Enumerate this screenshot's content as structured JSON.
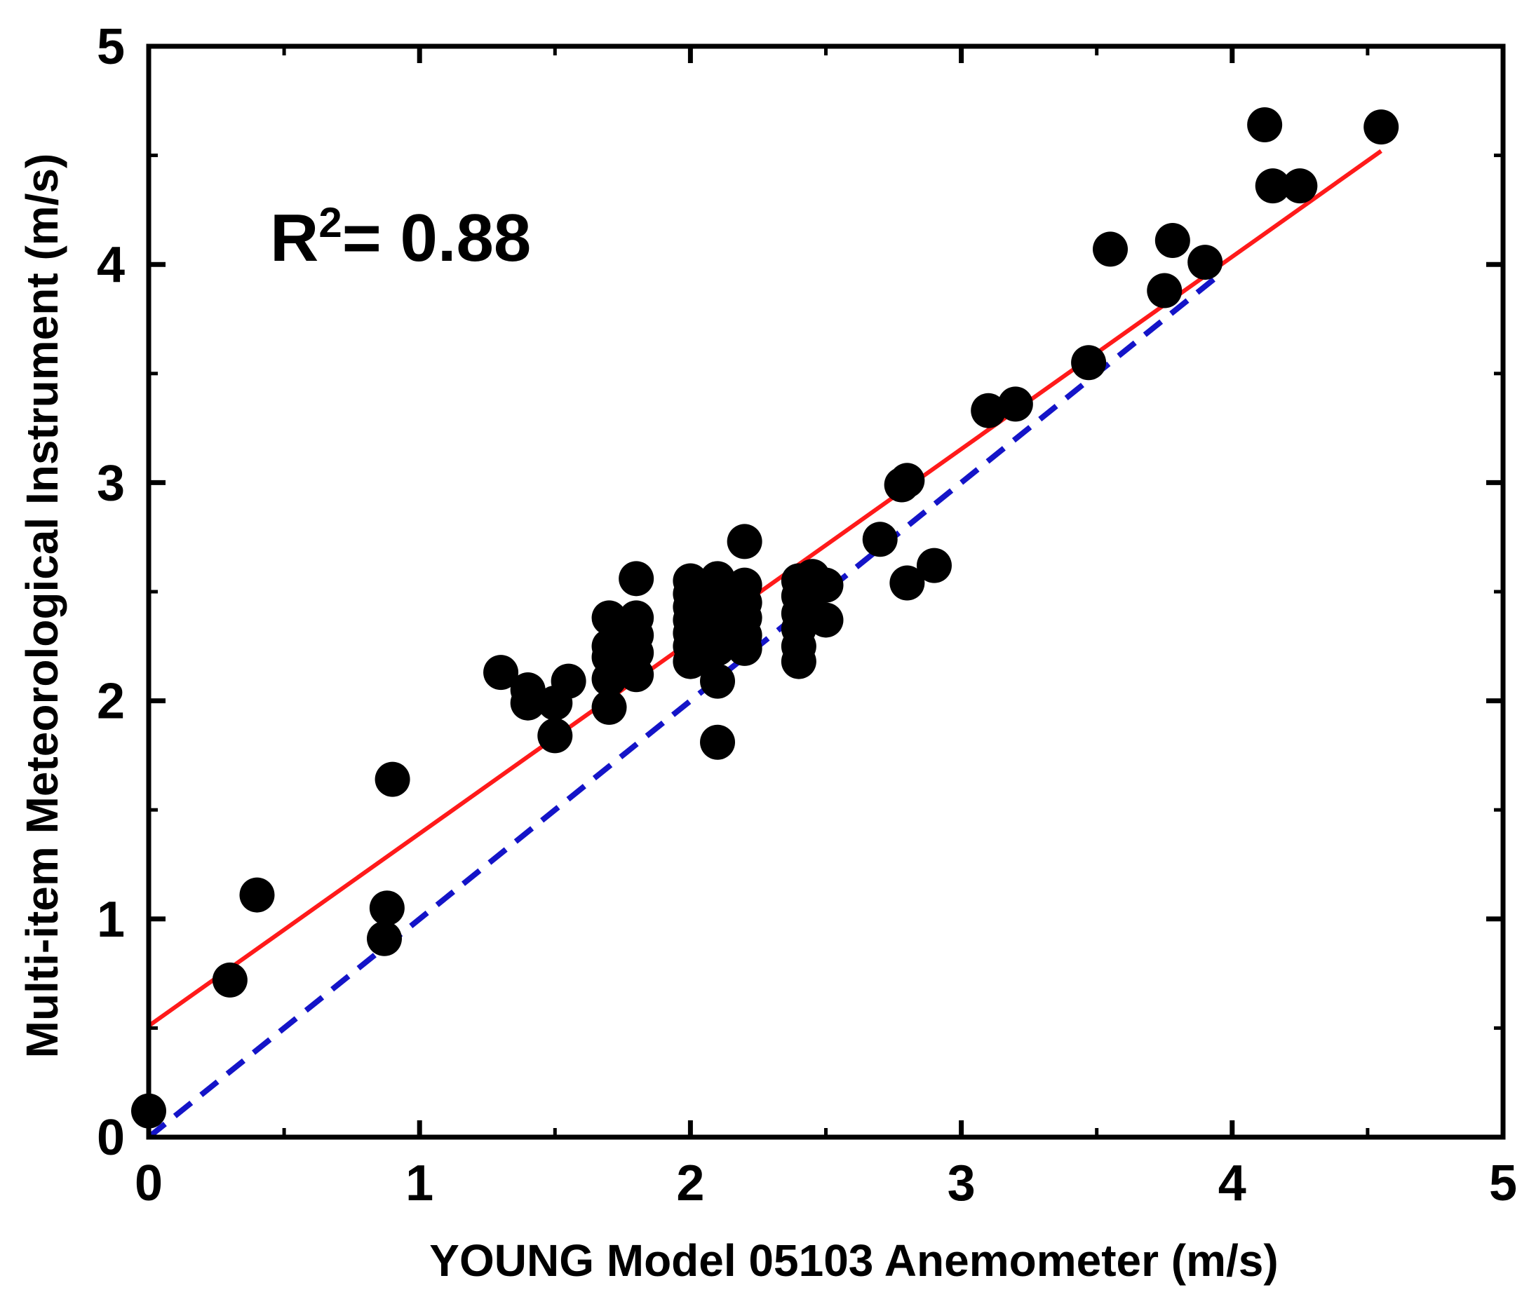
{
  "chart_data": {
    "type": "scatter",
    "xlabel": "YOUNG Model 05103 Anemometer (m/s)",
    "ylabel": "Multi-item Meteorological Instrument (m/s)",
    "xlim": [
      0,
      5
    ],
    "ylim": [
      0,
      5
    ],
    "xticks": [
      "0",
      "1",
      "2",
      "3",
      "4",
      "5"
    ],
    "yticks": [
      "0",
      "1",
      "2",
      "3",
      "4",
      "5"
    ],
    "annotation": {
      "prefix": "R",
      "superscript": "2",
      "suffix": "= 0.88"
    },
    "colors": {
      "points": "#000000",
      "fit": "#ff1a1a",
      "identity": "#1414c8",
      "axes": "#000000"
    },
    "fit_line": {
      "name": "linear fit",
      "x": [
        0,
        4.55
      ],
      "y": [
        0.51,
        4.52
      ]
    },
    "identity_line": {
      "name": "1:1 line",
      "x": [
        0,
        3.95
      ],
      "y": [
        0,
        3.95
      ]
    },
    "points": [
      [
        0.0,
        0.12
      ],
      [
        0.3,
        0.72
      ],
      [
        0.4,
        1.11
      ],
      [
        0.87,
        0.91
      ],
      [
        0.88,
        1.05
      ],
      [
        0.9,
        1.64
      ],
      [
        1.3,
        2.13
      ],
      [
        1.4,
        2.05
      ],
      [
        1.4,
        1.99
      ],
      [
        1.5,
        1.99
      ],
      [
        1.55,
        2.09
      ],
      [
        1.5,
        1.84
      ],
      [
        1.7,
        2.38
      ],
      [
        1.7,
        2.25
      ],
      [
        1.7,
        2.2
      ],
      [
        1.7,
        2.1
      ],
      [
        1.7,
        1.97
      ],
      [
        1.75,
        2.15
      ],
      [
        1.8,
        2.56
      ],
      [
        1.8,
        2.38
      ],
      [
        1.8,
        2.3
      ],
      [
        1.8,
        2.22
      ],
      [
        1.8,
        2.12
      ],
      [
        2.0,
        2.55
      ],
      [
        2.0,
        2.49
      ],
      [
        2.0,
        2.43
      ],
      [
        2.0,
        2.37
      ],
      [
        2.0,
        2.31
      ],
      [
        2.0,
        2.25
      ],
      [
        2.0,
        2.18
      ],
      [
        2.05,
        2.52
      ],
      [
        2.05,
        2.4
      ],
      [
        2.05,
        2.28
      ],
      [
        2.05,
        2.2
      ],
      [
        2.1,
        2.56
      ],
      [
        2.1,
        2.48
      ],
      [
        2.1,
        2.4
      ],
      [
        2.1,
        2.32
      ],
      [
        2.1,
        2.24
      ],
      [
        2.1,
        2.09
      ],
      [
        2.1,
        1.81
      ],
      [
        2.15,
        2.5
      ],
      [
        2.15,
        2.42
      ],
      [
        2.15,
        2.34
      ],
      [
        2.15,
        2.28
      ],
      [
        2.2,
        2.73
      ],
      [
        2.2,
        2.53
      ],
      [
        2.2,
        2.45
      ],
      [
        2.2,
        2.38
      ],
      [
        2.2,
        2.3
      ],
      [
        2.2,
        2.24
      ],
      [
        2.4,
        2.55
      ],
      [
        2.4,
        2.48
      ],
      [
        2.4,
        2.4
      ],
      [
        2.4,
        2.33
      ],
      [
        2.4,
        2.25
      ],
      [
        2.4,
        2.18
      ],
      [
        2.45,
        2.57
      ],
      [
        2.45,
        2.5
      ],
      [
        2.5,
        2.53
      ],
      [
        2.5,
        2.37
      ],
      [
        2.7,
        2.74
      ],
      [
        2.78,
        2.99
      ],
      [
        2.8,
        3.01
      ],
      [
        2.8,
        2.54
      ],
      [
        2.9,
        2.62
      ],
      [
        3.1,
        3.33
      ],
      [
        3.2,
        3.36
      ],
      [
        3.47,
        3.55
      ],
      [
        3.55,
        4.07
      ],
      [
        3.75,
        3.88
      ],
      [
        3.78,
        4.11
      ],
      [
        3.9,
        4.01
      ],
      [
        4.12,
        4.64
      ],
      [
        4.15,
        4.36
      ],
      [
        4.25,
        4.36
      ],
      [
        4.55,
        4.63
      ]
    ]
  }
}
